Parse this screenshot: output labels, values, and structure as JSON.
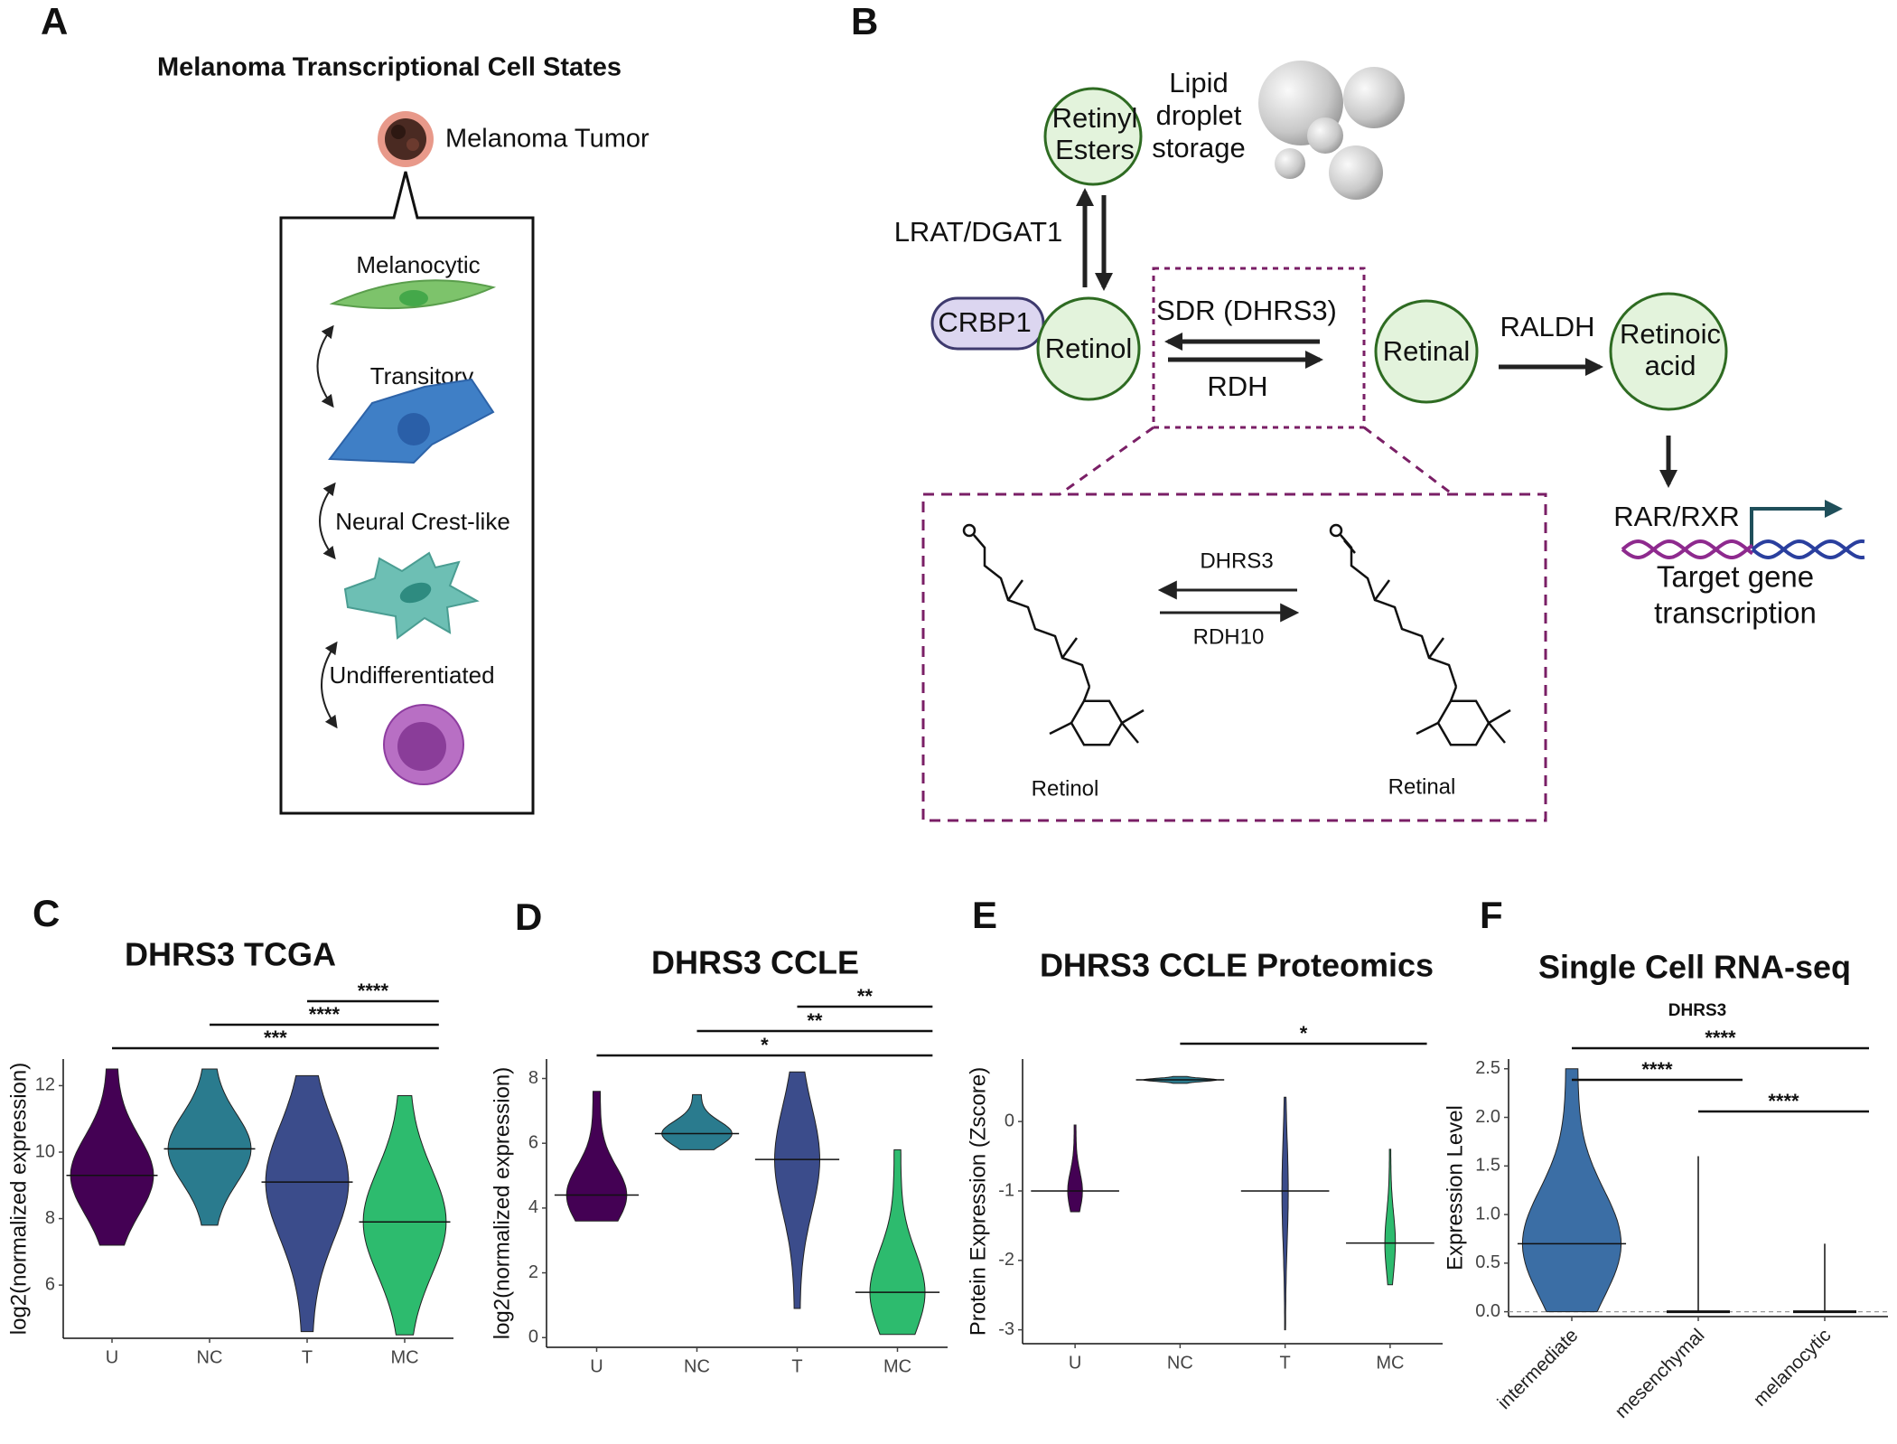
{
  "panels": {
    "A": {
      "letter": "A",
      "title": "Melanoma Transcriptional Cell States",
      "tumor": "Melanoma Tumor",
      "states": [
        "Melanocytic",
        "Transitory",
        "Neural Crest-like",
        "Undifferentiated"
      ]
    },
    "B": {
      "letter": "B",
      "retinyl_esters": [
        "Retinyl",
        "Esters"
      ],
      "lipid": [
        "Lipid",
        "droplet",
        "storage"
      ],
      "lrat": "LRAT/DGAT1",
      "crbp1": "CRBP1",
      "retinol": "Retinol",
      "sdr": "SDR (DHRS3)",
      "rdh": "RDH",
      "retinal": "Retinal",
      "raldh": "RALDH",
      "retinoic_acid": [
        "Retinoic",
        "acid"
      ],
      "rar_rxr": "RAR/RXR",
      "target": [
        "Target gene",
        "transcription"
      ],
      "inset": {
        "forward": "DHRS3",
        "reverse": "RDH10",
        "left": "Retinol",
        "right": "Retinal"
      }
    }
  },
  "chart_data": [
    {
      "type": "violin",
      "panel": "C",
      "title": "DHRS3 TCGA",
      "ylabel": "log2(normalized expression)",
      "categories": [
        "U",
        "NC",
        "T",
        "MC"
      ],
      "colors": [
        "#440154",
        "#2a7b8e",
        "#3b4c8b",
        "#2dbb6e"
      ],
      "min": [
        7.2,
        7.8,
        4.6,
        4.5
      ],
      "median": [
        9.3,
        10.1,
        9.1,
        7.9
      ],
      "max": [
        12.5,
        12.5,
        12.3,
        11.7
      ],
      "ylim": [
        4.4,
        12.8
      ],
      "yticks": [
        6,
        8,
        10,
        12
      ],
      "comparisons": [
        {
          "label": "***",
          "groups": [
            "U",
            "MC"
          ]
        },
        {
          "label": "****",
          "groups": [
            "NC",
            "MC"
          ]
        },
        {
          "label": "****",
          "groups": [
            "T",
            "MC"
          ]
        }
      ]
    },
    {
      "type": "violin",
      "panel": "D",
      "title": "DHRS3 CCLE",
      "ylabel": "log2(normalized expression)",
      "categories": [
        "U",
        "NC",
        "T",
        "MC"
      ],
      "colors": [
        "#440154",
        "#2a7b8e",
        "#3b4c8b",
        "#2dbb6e"
      ],
      "min": [
        3.6,
        5.8,
        0.9,
        0.1
      ],
      "median": [
        4.4,
        6.3,
        5.5,
        1.4
      ],
      "max": [
        7.6,
        7.5,
        8.2,
        5.8
      ],
      "ylim": [
        -0.3,
        8.6
      ],
      "yticks": [
        0,
        2,
        4,
        6,
        8
      ],
      "comparisons": [
        {
          "label": "*",
          "groups": [
            "U",
            "MC"
          ]
        },
        {
          "label": "**",
          "groups": [
            "NC",
            "MC"
          ]
        },
        {
          "label": "**",
          "groups": [
            "T",
            "MC"
          ]
        }
      ]
    },
    {
      "type": "violin",
      "panel": "E",
      "title": "DHRS3 CCLE Proteomics",
      "ylabel": "Protein Expression (Zscore)",
      "categories": [
        "U",
        "NC",
        "T",
        "MC"
      ],
      "colors": [
        "#440154",
        "#2a7b8e",
        "#3b4c8b",
        "#2dbb6e"
      ],
      "min": [
        -1.3,
        0.55,
        -3.0,
        -2.35
      ],
      "median": [
        -1.0,
        0.6,
        -1.0,
        -1.75
      ],
      "max": [
        -0.05,
        0.65,
        0.35,
        -0.4
      ],
      "ylim": [
        -3.2,
        0.9
      ],
      "yticks": [
        -3,
        -2,
        -1,
        0
      ],
      "comparisons": [
        {
          "label": "*",
          "groups": [
            "NC",
            "MC"
          ]
        }
      ]
    },
    {
      "type": "violin",
      "panel": "F",
      "title": "Single Cell RNA-seq",
      "subtitle": "DHRS3",
      "ylabel": "Expression Level",
      "categories": [
        "intermediate",
        "mesenchymal",
        "melanocytic"
      ],
      "colors": [
        "#3b6ea5",
        "#3b6ea5",
        "#3b6ea5"
      ],
      "min": [
        0,
        0,
        0
      ],
      "median": [
        0.7,
        0,
        0
      ],
      "max": [
        2.5,
        1.6,
        0.7
      ],
      "ylim": [
        -0.05,
        2.6
      ],
      "yticks": [
        {
          "value": 0,
          "label": "0.0"
        },
        0.5,
        {
          "value": 1,
          "label": "1.0"
        },
        1.5,
        {
          "value": 2,
          "label": "2.0"
        },
        2.5
      ],
      "comparisons": [
        {
          "label": "****",
          "groups": [
            "mesenchymal",
            "melanocytic"
          ]
        },
        {
          "label": "****",
          "groups": [
            "intermediate",
            "mesenchymal"
          ]
        },
        {
          "label": "****",
          "groups": [
            "intermediate",
            "melanocytic"
          ]
        }
      ]
    }
  ]
}
